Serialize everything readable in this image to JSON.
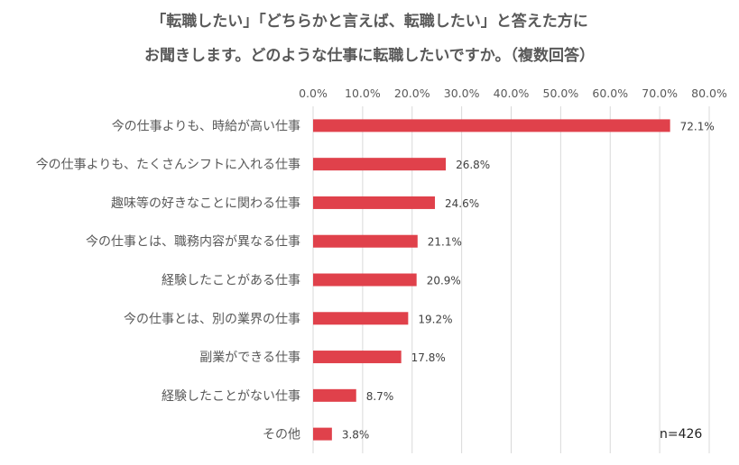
{
  "chart_data": {
    "type": "bar",
    "orientation": "horizontal",
    "title_lines": [
      "「転職したい」「どちらかと言えば、転職したい」と答えた方に",
      "お聞きします。どのような仕事に転職したいですか。（複数回答）"
    ],
    "categories": [
      "今の仕事よりも、時給が高い仕事",
      "今の仕事よりも、たくさんシフトに入れる仕事",
      "趣味等の好きなことに関わる仕事",
      "今の仕事とは、職務内容が異なる仕事",
      "経験したことがある仕事",
      "今の仕事とは、別の業界の仕事",
      "副業ができる仕事",
      "経験したことがない仕事",
      "その他"
    ],
    "values": [
      72.1,
      26.8,
      24.6,
      21.1,
      20.9,
      19.2,
      17.8,
      8.7,
      3.8
    ],
    "value_labels": [
      "72.1%",
      "26.8%",
      "24.6%",
      "21.1%",
      "20.9%",
      "19.2%",
      "17.8%",
      "8.7%",
      "3.8%"
    ],
    "xlim": [
      0,
      80
    ],
    "xticks": [
      0,
      10,
      20,
      30,
      40,
      50,
      60,
      70,
      80
    ],
    "xtick_labels": [
      "0.0%",
      "10.0%",
      "20.0%",
      "30.0%",
      "40.0%",
      "50.0%",
      "60.0%",
      "70.0%",
      "80.0%"
    ],
    "axis_position": "top",
    "grid": true,
    "bar_color": "#e0414b",
    "grid_color": "#d9d9d9",
    "note": "n=426"
  }
}
